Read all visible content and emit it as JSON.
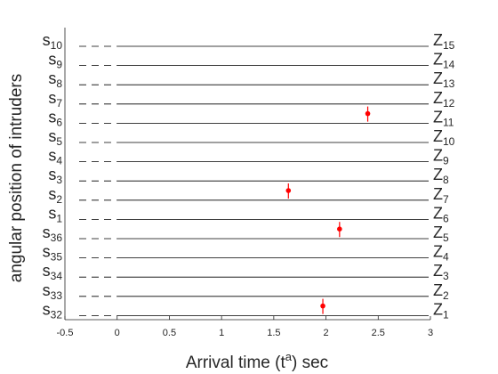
{
  "chart_data": {
    "type": "scatter",
    "title": "",
    "xlabel": "Arrival time (t",
    "xlabel_sup": "a",
    "xlabel_suffix": ") sec",
    "ylabel": "angular position of intruders",
    "xlim": [
      -0.5,
      3
    ],
    "xticks": [
      "-0.5",
      "0",
      "0.5",
      "1",
      "1.5",
      "2",
      "2.5",
      "3"
    ],
    "xtick_values": [
      -0.5,
      0,
      0.5,
      1,
      1.5,
      2,
      2.5,
      3
    ],
    "left_labels": [
      {
        "base": "s",
        "sub": "32"
      },
      {
        "base": "s",
        "sub": "33"
      },
      {
        "base": "s",
        "sub": "34"
      },
      {
        "base": "s",
        "sub": "35"
      },
      {
        "base": "s",
        "sub": "36"
      },
      {
        "base": "s",
        "sub": "1"
      },
      {
        "base": "s",
        "sub": "2"
      },
      {
        "base": "s",
        "sub": "3"
      },
      {
        "base": "s",
        "sub": "4"
      },
      {
        "base": "s",
        "sub": "5"
      },
      {
        "base": "s",
        "sub": "6"
      },
      {
        "base": "s",
        "sub": "7"
      },
      {
        "base": "s",
        "sub": "8"
      },
      {
        "base": "s",
        "sub": "9"
      },
      {
        "base": "s",
        "sub": "10"
      }
    ],
    "right_labels": [
      {
        "base": "Z",
        "sub": "1"
      },
      {
        "base": "Z",
        "sub": "2"
      },
      {
        "base": "Z",
        "sub": "3"
      },
      {
        "base": "Z",
        "sub": "4"
      },
      {
        "base": "Z",
        "sub": "5"
      },
      {
        "base": "Z",
        "sub": "6"
      },
      {
        "base": "Z",
        "sub": "7"
      },
      {
        "base": "Z",
        "sub": "8"
      },
      {
        "base": "Z",
        "sub": "9"
      },
      {
        "base": "Z",
        "sub": "10"
      },
      {
        "base": "Z",
        "sub": "11"
      },
      {
        "base": "Z",
        "sub": "12"
      },
      {
        "base": "Z",
        "sub": "13"
      },
      {
        "base": "Z",
        "sub": "14"
      },
      {
        "base": "Z",
        "sub": "15"
      }
    ],
    "row_line_start_x": 0,
    "points": [
      {
        "x": 1.97,
        "row": 1.5
      },
      {
        "x": 1.64,
        "row": 7.5
      },
      {
        "x": 2.13,
        "row": 5.5
      },
      {
        "x": 2.4,
        "row": 11.5
      }
    ],
    "colors": {
      "points": "#ff0000",
      "lines": "#000000",
      "text": "#262626",
      "axis": "#262626"
    }
  }
}
